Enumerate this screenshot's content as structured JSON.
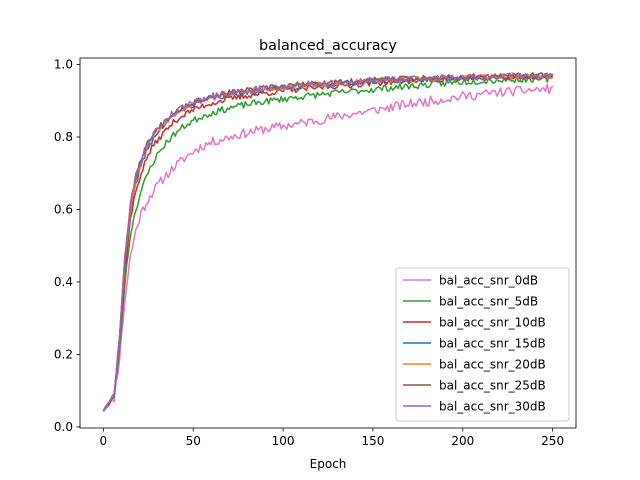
{
  "chart_data": {
    "type": "line",
    "title": "balanced_accuracy",
    "xlabel": "Epoch",
    "ylabel": "",
    "xlim": [
      -13,
      263
    ],
    "ylim": [
      -0.003,
      1.018
    ],
    "xticks": [
      0,
      50,
      100,
      150,
      200,
      250
    ],
    "yticks": [
      0.0,
      0.2,
      0.4,
      0.6,
      0.8,
      1.0
    ],
    "xtick_labels": [
      "0",
      "50",
      "100",
      "150",
      "200",
      "250"
    ],
    "ytick_labels": [
      "0.0",
      "0.2",
      "0.4",
      "0.6",
      "0.8",
      "1.0"
    ],
    "grid": false,
    "legend_position": "lower-right",
    "series": [
      {
        "name": "bal_acc_snr_0dB",
        "color": "#e377c2",
        "anchors": [
          [
            0,
            0.045
          ],
          [
            3,
            0.06
          ],
          [
            6,
            0.08
          ],
          [
            9,
            0.19
          ],
          [
            12,
            0.35
          ],
          [
            15,
            0.47
          ],
          [
            18,
            0.54
          ],
          [
            21,
            0.59
          ],
          [
            24,
            0.62
          ],
          [
            27,
            0.645
          ],
          [
            30,
            0.665
          ],
          [
            35,
            0.695
          ],
          [
            40,
            0.72
          ],
          [
            45,
            0.74
          ],
          [
            50,
            0.76
          ],
          [
            55,
            0.775
          ],
          [
            60,
            0.785
          ],
          [
            70,
            0.8
          ],
          [
            80,
            0.812
          ],
          [
            90,
            0.822
          ],
          [
            100,
            0.83
          ],
          [
            110,
            0.838
          ],
          [
            120,
            0.847
          ],
          [
            130,
            0.856
          ],
          [
            140,
            0.865
          ],
          [
            150,
            0.873
          ],
          [
            160,
            0.882
          ],
          [
            170,
            0.891
          ],
          [
            180,
            0.898
          ],
          [
            190,
            0.905
          ],
          [
            200,
            0.912
          ],
          [
            210,
            0.918
          ],
          [
            220,
            0.923
          ],
          [
            230,
            0.927
          ],
          [
            240,
            0.93
          ],
          [
            250,
            0.933
          ]
        ],
        "noise": 0.013,
        "seed": 11
      },
      {
        "name": "bal_acc_snr_5dB",
        "color": "#2ca02c",
        "anchors": [
          [
            0,
            0.045
          ],
          [
            3,
            0.062
          ],
          [
            6,
            0.085
          ],
          [
            9,
            0.21
          ],
          [
            12,
            0.4
          ],
          [
            15,
            0.53
          ],
          [
            18,
            0.6
          ],
          [
            21,
            0.65
          ],
          [
            24,
            0.69
          ],
          [
            27,
            0.725
          ],
          [
            30,
            0.75
          ],
          [
            35,
            0.785
          ],
          [
            40,
            0.81
          ],
          [
            45,
            0.83
          ],
          [
            50,
            0.845
          ],
          [
            55,
            0.857
          ],
          [
            60,
            0.866
          ],
          [
            70,
            0.88
          ],
          [
            80,
            0.89
          ],
          [
            90,
            0.898
          ],
          [
            100,
            0.905
          ],
          [
            110,
            0.911
          ],
          [
            120,
            0.917
          ],
          [
            130,
            0.922
          ],
          [
            140,
            0.927
          ],
          [
            150,
            0.931
          ],
          [
            160,
            0.936
          ],
          [
            170,
            0.94
          ],
          [
            180,
            0.944
          ],
          [
            190,
            0.948
          ],
          [
            200,
            0.952
          ],
          [
            210,
            0.955
          ],
          [
            220,
            0.957
          ],
          [
            230,
            0.959
          ],
          [
            240,
            0.96
          ],
          [
            250,
            0.96
          ]
        ],
        "noise": 0.009,
        "seed": 23
      },
      {
        "name": "bal_acc_snr_10dB",
        "color": "#d62728",
        "anchors": [
          [
            0,
            0.045
          ],
          [
            3,
            0.065
          ],
          [
            6,
            0.09
          ],
          [
            9,
            0.23
          ],
          [
            12,
            0.43
          ],
          [
            15,
            0.57
          ],
          [
            18,
            0.65
          ],
          [
            21,
            0.7
          ],
          [
            24,
            0.74
          ],
          [
            27,
            0.77
          ],
          [
            30,
            0.79
          ],
          [
            35,
            0.82
          ],
          [
            40,
            0.845
          ],
          [
            45,
            0.862
          ],
          [
            50,
            0.875
          ],
          [
            55,
            0.885
          ],
          [
            60,
            0.893
          ],
          [
            70,
            0.905
          ],
          [
            80,
            0.914
          ],
          [
            90,
            0.921
          ],
          [
            100,
            0.927
          ],
          [
            110,
            0.932
          ],
          [
            120,
            0.937
          ],
          [
            130,
            0.941
          ],
          [
            140,
            0.945
          ],
          [
            150,
            0.949
          ],
          [
            160,
            0.952
          ],
          [
            170,
            0.955
          ],
          [
            180,
            0.957
          ],
          [
            190,
            0.959
          ],
          [
            200,
            0.961
          ],
          [
            210,
            0.963
          ],
          [
            220,
            0.964
          ],
          [
            230,
            0.965
          ],
          [
            240,
            0.966
          ],
          [
            250,
            0.966
          ]
        ],
        "noise": 0.008,
        "seed": 37
      },
      {
        "name": "bal_acc_snr_15dB",
        "color": "#1f77b4",
        "anchors": [
          [
            0,
            0.045
          ],
          [
            3,
            0.066
          ],
          [
            6,
            0.092
          ],
          [
            9,
            0.24
          ],
          [
            12,
            0.45
          ],
          [
            15,
            0.59
          ],
          [
            18,
            0.67
          ],
          [
            21,
            0.72
          ],
          [
            24,
            0.76
          ],
          [
            27,
            0.79
          ],
          [
            30,
            0.81
          ],
          [
            35,
            0.84
          ],
          [
            40,
            0.862
          ],
          [
            45,
            0.878
          ],
          [
            50,
            0.89
          ],
          [
            55,
            0.899
          ],
          [
            60,
            0.906
          ],
          [
            70,
            0.916
          ],
          [
            80,
            0.924
          ],
          [
            90,
            0.93
          ],
          [
            100,
            0.935
          ],
          [
            110,
            0.94
          ],
          [
            120,
            0.944
          ],
          [
            130,
            0.947
          ],
          [
            140,
            0.95
          ],
          [
            150,
            0.953
          ],
          [
            160,
            0.956
          ],
          [
            170,
            0.958
          ],
          [
            180,
            0.96
          ],
          [
            190,
            0.962
          ],
          [
            200,
            0.963
          ],
          [
            210,
            0.965
          ],
          [
            220,
            0.966
          ],
          [
            230,
            0.967
          ],
          [
            240,
            0.967
          ],
          [
            250,
            0.968
          ]
        ],
        "noise": 0.008,
        "seed": 41
      },
      {
        "name": "bal_acc_snr_20dB",
        "color": "#ff7f0e",
        "anchors": [
          [
            0,
            0.045
          ],
          [
            3,
            0.066
          ],
          [
            6,
            0.093
          ],
          [
            9,
            0.245
          ],
          [
            12,
            0.46
          ],
          [
            15,
            0.6
          ],
          [
            18,
            0.68
          ],
          [
            21,
            0.73
          ],
          [
            24,
            0.77
          ],
          [
            27,
            0.8
          ],
          [
            30,
            0.815
          ],
          [
            35,
            0.845
          ],
          [
            40,
            0.866
          ],
          [
            45,
            0.882
          ],
          [
            50,
            0.893
          ],
          [
            55,
            0.902
          ],
          [
            60,
            0.909
          ],
          [
            70,
            0.919
          ],
          [
            80,
            0.926
          ],
          [
            90,
            0.932
          ],
          [
            100,
            0.937
          ],
          [
            110,
            0.942
          ],
          [
            120,
            0.946
          ],
          [
            130,
            0.949
          ],
          [
            140,
            0.952
          ],
          [
            150,
            0.955
          ],
          [
            160,
            0.957
          ],
          [
            170,
            0.959
          ],
          [
            180,
            0.961
          ],
          [
            190,
            0.963
          ],
          [
            200,
            0.964
          ],
          [
            210,
            0.966
          ],
          [
            220,
            0.967
          ],
          [
            230,
            0.967
          ],
          [
            240,
            0.968
          ],
          [
            250,
            0.968
          ]
        ],
        "noise": 0.008,
        "seed": 53
      },
      {
        "name": "bal_acc_snr_25dB",
        "color": "#8c564b",
        "anchors": [
          [
            0,
            0.045
          ],
          [
            3,
            0.067
          ],
          [
            6,
            0.094
          ],
          [
            9,
            0.25
          ],
          [
            12,
            0.47
          ],
          [
            15,
            0.61
          ],
          [
            18,
            0.69
          ],
          [
            21,
            0.74
          ],
          [
            24,
            0.775
          ],
          [
            27,
            0.805
          ],
          [
            30,
            0.82
          ],
          [
            35,
            0.85
          ],
          [
            40,
            0.87
          ],
          [
            45,
            0.886
          ],
          [
            50,
            0.896
          ],
          [
            55,
            0.905
          ],
          [
            60,
            0.912
          ],
          [
            70,
            0.921
          ],
          [
            80,
            0.928
          ],
          [
            90,
            0.934
          ],
          [
            100,
            0.939
          ],
          [
            110,
            0.944
          ],
          [
            120,
            0.947
          ],
          [
            130,
            0.95
          ],
          [
            140,
            0.953
          ],
          [
            150,
            0.956
          ],
          [
            160,
            0.958
          ],
          [
            170,
            0.96
          ],
          [
            180,
            0.962
          ],
          [
            190,
            0.964
          ],
          [
            200,
            0.965
          ],
          [
            210,
            0.966
          ],
          [
            220,
            0.967
          ],
          [
            230,
            0.968
          ],
          [
            240,
            0.968
          ],
          [
            250,
            0.969
          ]
        ],
        "noise": 0.009,
        "seed": 67
      },
      {
        "name": "bal_acc_snr_30dB",
        "color": "#9467bd",
        "anchors": [
          [
            0,
            0.045
          ],
          [
            3,
            0.067
          ],
          [
            6,
            0.094
          ],
          [
            9,
            0.25
          ],
          [
            12,
            0.47
          ],
          [
            15,
            0.61
          ],
          [
            18,
            0.69
          ],
          [
            21,
            0.74
          ],
          [
            24,
            0.775
          ],
          [
            27,
            0.805
          ],
          [
            30,
            0.82
          ],
          [
            35,
            0.85
          ],
          [
            40,
            0.87
          ],
          [
            45,
            0.886
          ],
          [
            50,
            0.896
          ],
          [
            55,
            0.905
          ],
          [
            60,
            0.912
          ],
          [
            70,
            0.921
          ],
          [
            80,
            0.928
          ],
          [
            90,
            0.934
          ],
          [
            100,
            0.939
          ],
          [
            110,
            0.944
          ],
          [
            120,
            0.947
          ],
          [
            130,
            0.95
          ],
          [
            140,
            0.953
          ],
          [
            150,
            0.956
          ],
          [
            160,
            0.958
          ],
          [
            170,
            0.96
          ],
          [
            180,
            0.962
          ],
          [
            190,
            0.964
          ],
          [
            200,
            0.965
          ],
          [
            210,
            0.966
          ],
          [
            220,
            0.967
          ],
          [
            230,
            0.968
          ],
          [
            240,
            0.968
          ],
          [
            250,
            0.969
          ]
        ],
        "noise": 0.009,
        "seed": 79
      }
    ]
  }
}
